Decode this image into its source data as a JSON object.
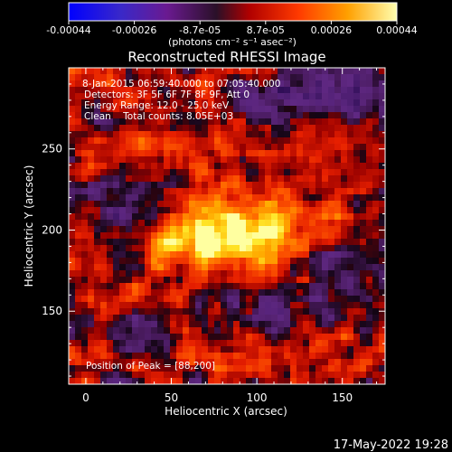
{
  "chart_data": {
    "type": "heatmap",
    "title": "Reconstructed RHESSI Image",
    "xlabel": "Heliocentric X (arcsec)",
    "ylabel": "Heliocentric Y (arcsec)",
    "xlim": [
      -10,
      175
    ],
    "ylim": [
      105,
      300
    ],
    "x_ticks": [
      0,
      50,
      100,
      150
    ],
    "x_tick_labels": [
      "0",
      "50",
      "100",
      "150"
    ],
    "y_ticks": [
      150,
      200,
      250
    ],
    "y_tick_labels": [
      "150",
      "200",
      "250"
    ],
    "annotations": [
      "8-Jan-2015 06:59:40.000 to 07:05:40.000",
      "Detectors: 3F 5F 6F 7F 8F 9F, Att 0",
      "Energy Range: 12.0 - 25.0 keV",
      "Clean    Total counts: 8.05E+03"
    ],
    "peak_label": "Position of Peak = [88,200]",
    "peak_position": [
      88,
      200
    ],
    "colorbar": {
      "min": -0.00044,
      "max": 0.00044,
      "tick_labels": [
        "-0.00044",
        "-0.00026",
        "-8.7e-05",
        "8.7e-05",
        "0.00026",
        "0.00044"
      ],
      "unit_label": "(photons cm⁻² s⁻¹ asec⁻²)",
      "colors": [
        "#0000ff",
        "#5a00a0",
        "#3a1a60",
        "#cc0000",
        "#ff5a00",
        "#ffc000",
        "#ffff80"
      ]
    },
    "grid": false
  },
  "timestamp": "17-May-2022 19:28"
}
